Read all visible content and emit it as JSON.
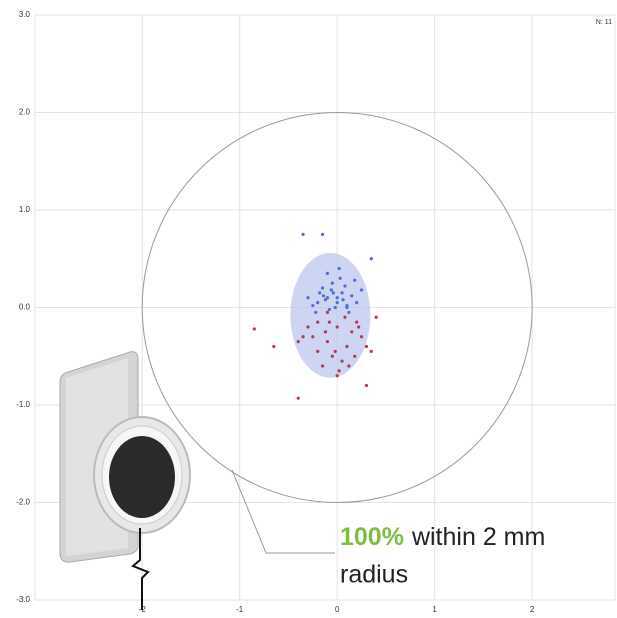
{
  "chart_data": {
    "type": "scatter",
    "annotation_count": "N: 11",
    "annotation_percent": "100%",
    "annotation_within": "within 2 mm",
    "annotation_radius": "radius",
    "xlim": [
      -3.1,
      2.85
    ],
    "ylim": [
      -3,
      3
    ],
    "xticks": [
      -2,
      -1,
      0,
      1,
      2
    ],
    "yticks": [
      {
        "value": 3,
        "label": "3.0"
      },
      {
        "value": 2,
        "label": "2.0"
      },
      {
        "value": 1,
        "label": "1.0"
      },
      {
        "value": 0,
        "label": "0.0"
      },
      {
        "value": -1,
        "label": "-1.0"
      },
      {
        "value": -2,
        "label": "-2.0"
      },
      {
        "value": -3,
        "label": "-3.0"
      }
    ],
    "grid": true,
    "reference_circle_radius": 2,
    "confidence_ellipse": {
      "cx": -0.07,
      "cy": -0.08,
      "rx": 0.41,
      "ry": 0.64,
      "color": "#b9c3ec"
    },
    "series": [
      {
        "color": "#b53a55",
        "x": [
          -0.2,
          0.0,
          0.15,
          -0.1,
          0.1,
          -0.25,
          0.2,
          -0.05,
          0.05,
          -0.3,
          0.25,
          -0.15,
          0.08,
          -0.02,
          0.18,
          -0.12,
          0.3,
          -0.35,
          0.02,
          -0.08,
          0.12,
          -0.2,
          0.22,
          -0.4,
          0.35,
          -0.85,
          -0.65,
          -0.4,
          0.3,
          0.4,
          0.0,
          -0.1
        ],
        "values": [
          -0.15,
          -0.2,
          -0.25,
          -0.35,
          -0.4,
          -0.3,
          -0.15,
          -0.5,
          -0.55,
          -0.2,
          -0.3,
          -0.6,
          -0.1,
          -0.45,
          -0.5,
          -0.25,
          -0.4,
          -0.3,
          -0.65,
          -0.15,
          -0.6,
          -0.45,
          -0.2,
          -0.35,
          -0.45,
          -0.22,
          -0.4,
          -0.93,
          -0.8,
          -0.1,
          -0.7,
          -0.05
        ]
      },
      {
        "color": "#4a6fd6",
        "x": [
          -0.1,
          0.05,
          -0.2,
          0.1,
          -0.05,
          0.0,
          -0.15,
          0.15,
          -0.25,
          0.2,
          -0.08,
          0.03,
          -0.12,
          0.08,
          -0.02,
          -0.18,
          0.12,
          -0.3,
          0.25,
          0.0,
          -0.06,
          0.06,
          -0.22,
          0.18,
          -0.1,
          0.02,
          -0.14,
          0.1,
          -0.04,
          -0.35,
          -0.15,
          0.35
        ],
        "values": [
          0.1,
          0.15,
          0.05,
          0.0,
          0.25,
          0.1,
          0.2,
          0.12,
          0.02,
          0.05,
          -0.02,
          0.3,
          0.08,
          0.22,
          0.0,
          0.15,
          -0.05,
          0.1,
          0.18,
          0.05,
          0.18,
          0.08,
          -0.05,
          0.28,
          0.35,
          0.4,
          0.12,
          0.02,
          0.15,
          0.75,
          0.75,
          0.5
        ]
      }
    ]
  }
}
